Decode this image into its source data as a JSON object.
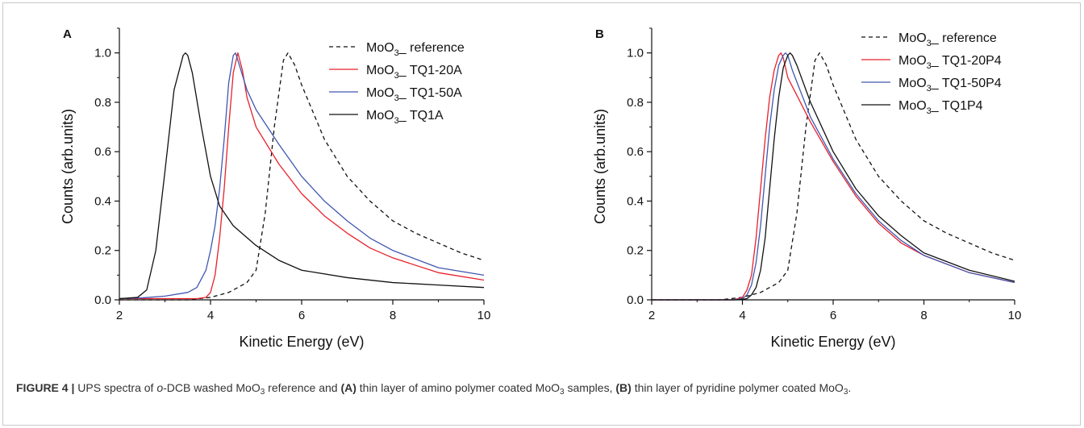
{
  "colors": {
    "red": "#e8202a",
    "blue": "#4057b0",
    "black": "#111111",
    "dashed": "#111111"
  },
  "chart_data": [
    {
      "type": "line",
      "panel_label": "A",
      "xlabel": "Kinetic Energy (eV)",
      "ylabel": "Counts (arb.units)",
      "xlim": [
        2,
        10
      ],
      "ylim": [
        0,
        1.1
      ],
      "xticks": [
        2,
        4,
        6,
        8,
        10
      ],
      "yticks": [
        0.0,
        0.2,
        0.4,
        0.6,
        0.8,
        1.0
      ],
      "ytick_labels": [
        "0.0",
        "0.2",
        "0.4",
        "0.6",
        "0.8",
        "1.0"
      ],
      "legend_position": "top-right",
      "series": [
        {
          "name_main": "MoO",
          "name_sub": "3",
          "name_rest": "_ reference",
          "style": "dashed",
          "color": "#111111",
          "x": [
            2.0,
            3.5,
            4.0,
            4.4,
            4.8,
            5.0,
            5.2,
            5.4,
            5.6,
            5.7,
            5.85,
            6.0,
            6.5,
            7.0,
            7.5,
            8.0,
            8.5,
            9.0,
            9.5,
            10.0
          ],
          "y": [
            0.0,
            0.0,
            0.01,
            0.03,
            0.07,
            0.12,
            0.35,
            0.7,
            0.97,
            1.0,
            0.95,
            0.87,
            0.65,
            0.5,
            0.4,
            0.32,
            0.27,
            0.23,
            0.19,
            0.16
          ]
        },
        {
          "name_main": "MoO",
          "name_sub": "3",
          "name_rest": "_ TQ1-20A",
          "style": "solid",
          "color": "#e8202a",
          "x": [
            2.0,
            3.7,
            3.9,
            4.0,
            4.1,
            4.2,
            4.3,
            4.4,
            4.5,
            4.6,
            4.7,
            4.8,
            5.0,
            5.5,
            6.0,
            6.5,
            7.0,
            7.5,
            8.0,
            9.0,
            10.0
          ],
          "y": [
            0.005,
            0.005,
            0.01,
            0.03,
            0.1,
            0.25,
            0.45,
            0.7,
            0.92,
            1.0,
            0.93,
            0.82,
            0.7,
            0.55,
            0.43,
            0.34,
            0.27,
            0.21,
            0.17,
            0.11,
            0.08
          ]
        },
        {
          "name_main": "MoO",
          "name_sub": "3",
          "name_rest": "_ TQ1-50A",
          "style": "solid",
          "color": "#4057b0",
          "x": [
            2.0,
            2.5,
            3.0,
            3.5,
            3.7,
            3.9,
            4.0,
            4.1,
            4.2,
            4.3,
            4.4,
            4.5,
            4.55,
            4.6,
            4.8,
            5.0,
            5.5,
            6.0,
            6.5,
            7.0,
            7.5,
            8.0,
            9.0,
            10.0
          ],
          "y": [
            0.005,
            0.008,
            0.015,
            0.03,
            0.05,
            0.12,
            0.2,
            0.3,
            0.45,
            0.65,
            0.88,
            0.99,
            1.0,
            0.97,
            0.85,
            0.77,
            0.63,
            0.5,
            0.4,
            0.32,
            0.25,
            0.2,
            0.13,
            0.1
          ]
        },
        {
          "name_main": "MoO",
          "name_sub": "3",
          "name_rest": "_ TQ1A",
          "style": "solid",
          "color": "#111111",
          "x": [
            2.0,
            2.4,
            2.6,
            2.8,
            3.0,
            3.2,
            3.4,
            3.45,
            3.5,
            3.6,
            3.8,
            4.0,
            4.2,
            4.5,
            5.0,
            5.5,
            6.0,
            7.0,
            8.0,
            9.0,
            10.0
          ],
          "y": [
            0.005,
            0.01,
            0.04,
            0.2,
            0.52,
            0.85,
            0.99,
            1.0,
            0.99,
            0.92,
            0.7,
            0.5,
            0.38,
            0.3,
            0.22,
            0.16,
            0.12,
            0.09,
            0.07,
            0.06,
            0.05
          ]
        }
      ]
    },
    {
      "type": "line",
      "panel_label": "B",
      "xlabel": "Kinetic Energy (eV)",
      "ylabel": "Counts (arb.units)",
      "xlim": [
        2,
        10
      ],
      "ylim": [
        0,
        1.1
      ],
      "xticks": [
        2,
        4,
        6,
        8,
        10
      ],
      "yticks": [
        0.0,
        0.2,
        0.4,
        0.6,
        0.8,
        1.0
      ],
      "ytick_labels": [
        "0.0",
        "0.2",
        "0.4",
        "0.6",
        "0.8",
        "1.0"
      ],
      "legend_position": "top-right",
      "series": [
        {
          "name_main": "MoO",
          "name_sub": "3",
          "name_rest": "_ reference",
          "style": "dashed",
          "color": "#111111",
          "x": [
            2.0,
            3.5,
            4.0,
            4.4,
            4.8,
            5.0,
            5.2,
            5.4,
            5.6,
            5.7,
            5.85,
            6.0,
            6.5,
            7.0,
            7.5,
            8.0,
            8.5,
            9.0,
            9.5,
            10.0
          ],
          "y": [
            0.0,
            0.0,
            0.01,
            0.03,
            0.07,
            0.12,
            0.35,
            0.7,
            0.97,
            1.0,
            0.95,
            0.87,
            0.65,
            0.5,
            0.4,
            0.32,
            0.27,
            0.23,
            0.19,
            0.16
          ]
        },
        {
          "name_main": "MoO",
          "name_sub": "3",
          "name_rest": "_ TQ1-20P4",
          "style": "solid",
          "color": "#e8202a",
          "x": [
            2.0,
            3.8,
            4.0,
            4.1,
            4.2,
            4.3,
            4.4,
            4.5,
            4.6,
            4.7,
            4.8,
            4.85,
            4.9,
            5.0,
            5.5,
            6.0,
            6.5,
            7.0,
            7.5,
            8.0,
            9.0,
            10.0
          ],
          "y": [
            0.0,
            0.0,
            0.01,
            0.04,
            0.1,
            0.25,
            0.45,
            0.65,
            0.82,
            0.93,
            0.99,
            1.0,
            0.98,
            0.9,
            0.72,
            0.56,
            0.42,
            0.31,
            0.23,
            0.18,
            0.11,
            0.07
          ]
        },
        {
          "name_main": "MoO",
          "name_sub": "3",
          "name_rest": "_ TQ1-50P4",
          "style": "solid",
          "color": "#4057b0",
          "x": [
            2.0,
            3.8,
            4.0,
            4.1,
            4.2,
            4.3,
            4.4,
            4.5,
            4.6,
            4.7,
            4.8,
            4.9,
            4.95,
            5.0,
            5.1,
            5.5,
            6.0,
            6.5,
            7.0,
            7.5,
            8.0,
            9.0,
            10.0
          ],
          "y": [
            0.0,
            0.0,
            0.005,
            0.02,
            0.06,
            0.15,
            0.3,
            0.5,
            0.7,
            0.85,
            0.95,
            0.99,
            1.0,
            0.99,
            0.93,
            0.74,
            0.57,
            0.43,
            0.32,
            0.24,
            0.18,
            0.11,
            0.07
          ]
        },
        {
          "name_main": "MoO",
          "name_sub": "3",
          "name_rest": "_ TQ1P4",
          "style": "solid",
          "color": "#111111",
          "x": [
            2.0,
            3.9,
            4.1,
            4.2,
            4.3,
            4.4,
            4.5,
            4.6,
            4.7,
            4.8,
            4.9,
            5.0,
            5.05,
            5.1,
            5.2,
            5.5,
            6.0,
            6.5,
            7.0,
            7.5,
            8.0,
            9.0,
            10.0
          ],
          "y": [
            0.0,
            0.0,
            0.005,
            0.02,
            0.05,
            0.12,
            0.25,
            0.45,
            0.65,
            0.82,
            0.94,
            0.99,
            1.0,
            0.99,
            0.95,
            0.8,
            0.6,
            0.45,
            0.34,
            0.26,
            0.19,
            0.12,
            0.075
          ]
        }
      ]
    }
  ],
  "caption": {
    "figure_number": "FIGURE 4 |",
    "text_1": " UPS spectra of ",
    "text_italic_o": "o",
    "text_2": "-DCB washed MoO",
    "sub_1": "3",
    "text_3": " reference and ",
    "bold_a": "(A)",
    "text_4": " thin layer of amino polymer coated MoO",
    "sub_2": "3",
    "text_5": " samples, ",
    "bold_b": "(B)",
    "text_6": " thin layer of pyridine polymer coated MoO",
    "sub_3": "3",
    "text_7": "."
  }
}
